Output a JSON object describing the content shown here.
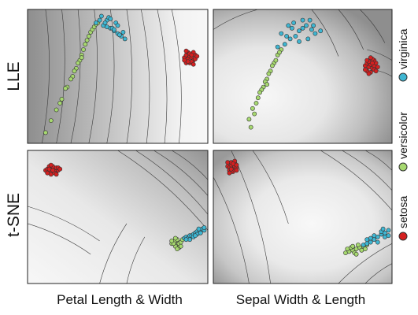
{
  "chart_data": [
    {
      "type": "scatter",
      "row": "LLE",
      "column": "Petal Length & Width",
      "background": "contour",
      "grid": false,
      "series": [
        {
          "name": "setosa",
          "x": [
            0.87,
            0.88,
            0.89,
            0.9,
            0.91,
            0.92,
            0.93,
            0.88,
            0.9,
            0.92,
            0.91,
            0.89,
            0.93,
            0.87,
            0.9,
            0.92,
            0.89,
            0.91,
            0.94,
            0.88
          ],
          "y": [
            0.64,
            0.66,
            0.63,
            0.65,
            0.64,
            0.62,
            0.66,
            0.6,
            0.6,
            0.68,
            0.61,
            0.68,
            0.63,
            0.62,
            0.67,
            0.59,
            0.61,
            0.66,
            0.65,
            0.69
          ]
        },
        {
          "name": "versicolor",
          "x": [
            0.1,
            0.13,
            0.16,
            0.19,
            0.22,
            0.25,
            0.27,
            0.29,
            0.3,
            0.31,
            0.32,
            0.33,
            0.34,
            0.35,
            0.36,
            0.37,
            0.38,
            0.39,
            0.3,
            0.28,
            0.26,
            0.24,
            0.21,
            0.18
          ],
          "y": [
            0.08,
            0.17,
            0.25,
            0.33,
            0.42,
            0.5,
            0.56,
            0.62,
            0.66,
            0.7,
            0.74,
            0.77,
            0.8,
            0.83,
            0.85,
            0.87,
            0.89,
            0.9,
            0.64,
            0.6,
            0.54,
            0.48,
            0.41,
            0.3
          ]
        },
        {
          "name": "virginica",
          "x": [
            0.38,
            0.42,
            0.44,
            0.46,
            0.48,
            0.5,
            0.52,
            0.54,
            0.45,
            0.49,
            0.41,
            0.47,
            0.43,
            0.5,
            0.53,
            0.4,
            0.44,
            0.48,
            0.51,
            0.46
          ],
          "y": [
            0.9,
            0.88,
            0.92,
            0.86,
            0.84,
            0.82,
            0.8,
            0.78,
            0.94,
            0.9,
            0.95,
            0.86,
            0.9,
            0.88,
            0.83,
            0.92,
            0.87,
            0.85,
            0.81,
            0.93
          ]
        }
      ]
    },
    {
      "type": "scatter",
      "row": "LLE",
      "column": "Sepal Width & Length",
      "background": "contour",
      "grid": false,
      "series": [
        {
          "name": "setosa",
          "x": [
            0.85,
            0.86,
            0.87,
            0.88,
            0.89,
            0.9,
            0.91,
            0.86,
            0.88,
            0.9,
            0.87,
            0.89,
            0.92,
            0.85,
            0.88,
            0.9,
            0.87,
            0.89,
            0.91,
            0.86
          ],
          "y": [
            0.58,
            0.6,
            0.57,
            0.59,
            0.56,
            0.58,
            0.6,
            0.54,
            0.53,
            0.62,
            0.61,
            0.63,
            0.57,
            0.55,
            0.64,
            0.55,
            0.52,
            0.6,
            0.54,
            0.62
          ]
        },
        {
          "name": "versicolor",
          "x": [
            0.2,
            0.22,
            0.25,
            0.28,
            0.3,
            0.32,
            0.34,
            0.36,
            0.38,
            0.27,
            0.29,
            0.24,
            0.31,
            0.33,
            0.26,
            0.23,
            0.35,
            0.37,
            0.21,
            0.3
          ],
          "y": [
            0.18,
            0.26,
            0.34,
            0.42,
            0.48,
            0.54,
            0.6,
            0.66,
            0.7,
            0.4,
            0.46,
            0.3,
            0.52,
            0.58,
            0.38,
            0.22,
            0.62,
            0.68,
            0.12,
            0.44
          ]
        },
        {
          "name": "virginica",
          "x": [
            0.36,
            0.4,
            0.43,
            0.46,
            0.48,
            0.5,
            0.52,
            0.55,
            0.57,
            0.42,
            0.45,
            0.38,
            0.5,
            0.53,
            0.56,
            0.44,
            0.48,
            0.54,
            0.41,
            0.6
          ],
          "y": [
            0.72,
            0.74,
            0.78,
            0.8,
            0.84,
            0.86,
            0.88,
            0.85,
            0.82,
            0.88,
            0.9,
            0.82,
            0.92,
            0.78,
            0.88,
            0.86,
            0.76,
            0.92,
            0.8,
            0.84
          ]
        }
      ]
    },
    {
      "type": "scatter",
      "row": "t-SNE",
      "column": "Petal Length & Width",
      "background": "contour",
      "grid": false,
      "series": [
        {
          "name": "setosa",
          "x": [
            0.1,
            0.11,
            0.12,
            0.13,
            0.14,
            0.15,
            0.16,
            0.17,
            0.12,
            0.14,
            0.16,
            0.11,
            0.13,
            0.15,
            0.17,
            0.12,
            0.14,
            0.16,
            0.18,
            0.13
          ],
          "y": [
            0.85,
            0.86,
            0.84,
            0.87,
            0.85,
            0.86,
            0.84,
            0.85,
            0.88,
            0.88,
            0.87,
            0.83,
            0.82,
            0.83,
            0.87,
            0.86,
            0.85,
            0.82,
            0.86,
            0.89
          ]
        },
        {
          "name": "versicolor",
          "x": [
            0.8,
            0.81,
            0.82,
            0.83,
            0.84,
            0.85,
            0.82,
            0.83,
            0.84,
            0.81,
            0.85,
            0.86,
            0.8,
            0.83,
            0.82
          ],
          "y": [
            0.3,
            0.31,
            0.32,
            0.29,
            0.3,
            0.31,
            0.28,
            0.33,
            0.27,
            0.3,
            0.28,
            0.33,
            0.32,
            0.26,
            0.34
          ]
        },
        {
          "name": "virginica",
          "x": [
            0.87,
            0.88,
            0.89,
            0.9,
            0.91,
            0.92,
            0.93,
            0.94,
            0.95,
            0.96,
            0.97,
            0.98,
            0.9,
            0.92,
            0.94,
            0.96,
            0.88,
            0.98,
            0.93,
            0.95
          ],
          "y": [
            0.34,
            0.35,
            0.34,
            0.36,
            0.36,
            0.37,
            0.38,
            0.39,
            0.38,
            0.4,
            0.41,
            0.4,
            0.33,
            0.35,
            0.37,
            0.38,
            0.33,
            0.42,
            0.36,
            0.41
          ]
        }
      ]
    },
    {
      "type": "scatter",
      "row": "t-SNE",
      "column": "Sepal Width & Length",
      "background": "contour",
      "grid": false,
      "series": [
        {
          "name": "setosa",
          "x": [
            0.08,
            0.09,
            0.1,
            0.11,
            0.12,
            0.13,
            0.1,
            0.12,
            0.09,
            0.11,
            0.13,
            0.08,
            0.1,
            0.12,
            0.11,
            0.09,
            0.13,
            0.1
          ],
          "y": [
            0.88,
            0.87,
            0.89,
            0.86,
            0.88,
            0.87,
            0.91,
            0.9,
            0.85,
            0.84,
            0.85,
            0.91,
            0.84,
            0.92,
            0.9,
            0.83,
            0.89,
            0.86
          ]
        },
        {
          "name": "versicolor",
          "x": [
            0.74,
            0.76,
            0.78,
            0.8,
            0.82,
            0.84,
            0.86,
            0.77,
            0.79,
            0.81,
            0.83,
            0.75,
            0.85,
            0.8,
            0.78
          ],
          "y": [
            0.23,
            0.24,
            0.25,
            0.26,
            0.27,
            0.28,
            0.29,
            0.27,
            0.23,
            0.29,
            0.25,
            0.26,
            0.26,
            0.22,
            0.28
          ]
        },
        {
          "name": "virginica",
          "x": [
            0.84,
            0.86,
            0.88,
            0.9,
            0.92,
            0.94,
            0.96,
            0.98,
            0.88,
            0.92,
            0.96,
            0.86,
            0.9,
            0.94,
            0.98,
            0.95
          ],
          "y": [
            0.29,
            0.3,
            0.31,
            0.33,
            0.35,
            0.37,
            0.38,
            0.4,
            0.34,
            0.31,
            0.35,
            0.33,
            0.36,
            0.39,
            0.36,
            0.41
          ]
        }
      ]
    }
  ],
  "rows": [
    "LLE",
    "t-SNE"
  ],
  "columns": [
    "Petal Length & Width",
    "Sepal Width & Length"
  ],
  "legend": {
    "placement": "right",
    "orientation": "vertical",
    "items": [
      {
        "label": "setosa",
        "color": "#d42020"
      },
      {
        "label": "versicolor",
        "color": "#a6d86f"
      },
      {
        "label": "virginica",
        "color": "#3eb6d2"
      }
    ]
  },
  "colors": {
    "contour_dark": "#8a8a8a",
    "contour_light": "#f7f7f7",
    "contour_line": "#3a3a3a",
    "point_outline": "#333333"
  }
}
